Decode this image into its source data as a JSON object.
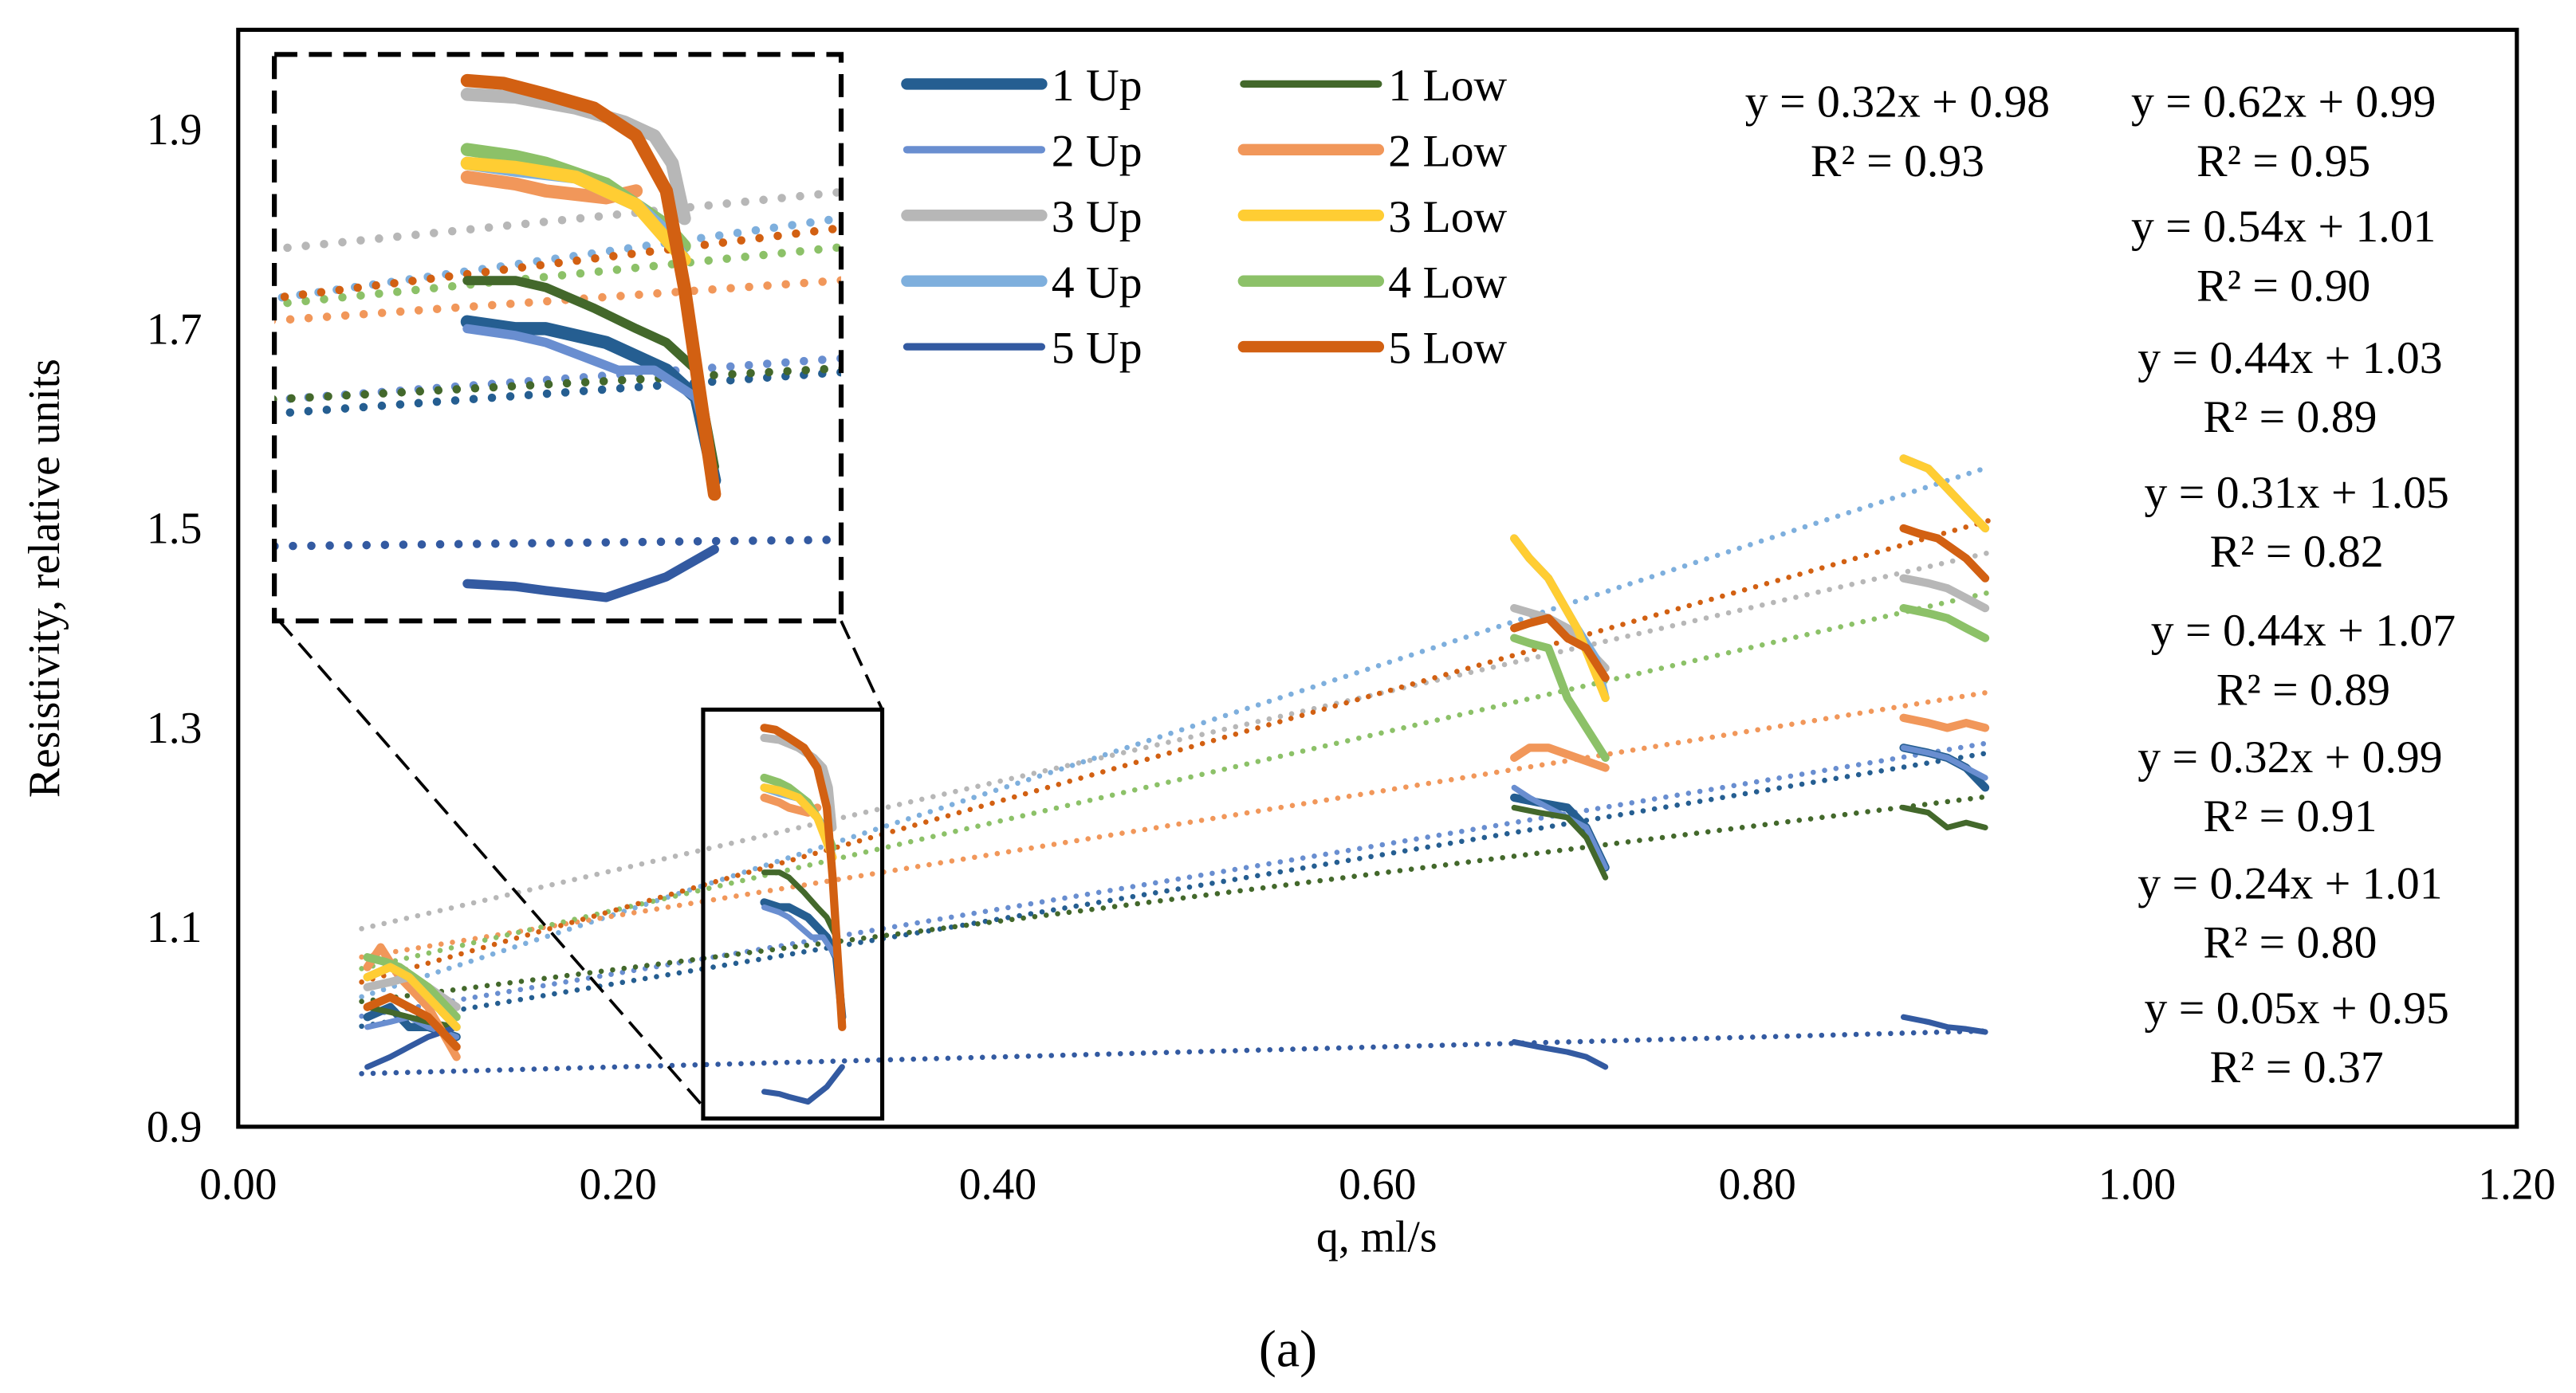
{
  "chart_data": {
    "type": "line",
    "title": "",
    "caption": "(a)",
    "xlabel": "q, ml/s",
    "ylabel": "Resistivity, relative units",
    "xlim": [
      0,
      1.2
    ],
    "ylim": [
      0.9,
      2.0
    ],
    "x_ticks": [
      "0.00",
      "0.20",
      "0.40",
      "0.60",
      "0.80",
      "1.00",
      "1.20"
    ],
    "x_tick_values": [
      0,
      0.2,
      0.4,
      0.6,
      0.8,
      1.0,
      1.2
    ],
    "y_ticks": [
      "0.9",
      "1.1",
      "1.3",
      "1.5",
      "1.7",
      "1.9"
    ],
    "y_tick_values": [
      0.9,
      1.1,
      1.3,
      1.5,
      1.7,
      1.9
    ],
    "grid": false,
    "legend_placement": "top-center",
    "inset": {
      "x_range": [
        0.245,
        0.339
      ],
      "y_range": [
        0.908,
        1.319
      ],
      "placement": "top-left"
    },
    "series": [
      {
        "name": "1 Up",
        "color": "#255E91",
        "thick": true,
        "fit": {
          "slope": 0.32,
          "intercept": 0.98
        },
        "segments": [
          [
            [
              0.068,
              1.01
            ],
            [
              0.08,
              1.02
            ],
            [
              0.09,
              1.0
            ],
            [
              0.1,
              1.0
            ],
            [
              0.115,
              0.99
            ]
          ],
          [
            [
              0.277,
              1.125
            ],
            [
              0.285,
              1.12
            ],
            [
              0.29,
              1.12
            ],
            [
              0.3,
              1.11
            ],
            [
              0.305,
              1.1
            ],
            [
              0.31,
              1.09
            ],
            [
              0.315,
              1.07
            ],
            [
              0.318,
              1.01
            ]
          ],
          [
            [
              0.672,
              1.23
            ],
            [
              0.685,
              1.225
            ],
            [
              0.7,
              1.22
            ],
            [
              0.71,
              1.2
            ],
            [
              0.72,
              1.16
            ]
          ],
          [
            [
              0.877,
              1.28
            ],
            [
              0.89,
              1.275
            ],
            [
              0.9,
              1.27
            ],
            [
              0.91,
              1.26
            ],
            [
              0.92,
              1.24
            ]
          ]
        ]
      },
      {
        "name": "2 Up",
        "color": "#698ED0",
        "thick": false,
        "fit": {
          "slope": 0.32,
          "intercept": 0.99
        },
        "segments": [
          [
            [
              0.068,
              1.0
            ],
            [
              0.08,
              1.005
            ],
            [
              0.09,
              1.01
            ],
            [
              0.1,
              1.0
            ],
            [
              0.115,
              0.99
            ]
          ],
          [
            [
              0.277,
              1.12
            ],
            [
              0.285,
              1.115
            ],
            [
              0.29,
              1.11
            ],
            [
              0.296,
              1.1
            ],
            [
              0.302,
              1.09
            ],
            [
              0.308,
              1.09
            ],
            [
              0.315,
              1.07
            ],
            [
              0.318,
              1.02
            ]
          ],
          [
            [
              0.672,
              1.24
            ],
            [
              0.68,
              1.23
            ],
            [
              0.69,
              1.22
            ],
            [
              0.71,
              1.2
            ],
            [
              0.72,
              1.16
            ]
          ],
          [
            [
              0.877,
              1.28
            ],
            [
              0.89,
              1.275
            ],
            [
              0.9,
              1.27
            ],
            [
              0.91,
              1.26
            ],
            [
              0.92,
              1.25
            ]
          ]
        ]
      },
      {
        "name": "3 Up",
        "color": "#B7B7B7",
        "thick": true,
        "fit": {
          "slope": 0.44,
          "intercept": 1.07
        },
        "segments": [
          [
            [
              0.068,
              1.04
            ],
            [
              0.08,
              1.045
            ],
            [
              0.09,
              1.05
            ],
            [
              0.1,
              1.04
            ],
            [
              0.115,
              1.02
            ]
          ],
          [
            [
              0.277,
              1.29
            ],
            [
              0.285,
              1.288
            ],
            [
              0.295,
              1.28
            ],
            [
              0.303,
              1.27
            ],
            [
              0.308,
              1.26
            ],
            [
              0.311,
              1.24
            ],
            [
              0.313,
              1.2
            ]
          ],
          [
            [
              0.672,
              1.42
            ],
            [
              0.69,
              1.41
            ],
            [
              0.7,
              1.4
            ],
            [
              0.71,
              1.38
            ],
            [
              0.72,
              1.36
            ]
          ],
          [
            [
              0.877,
              1.45
            ],
            [
              0.89,
              1.445
            ],
            [
              0.9,
              1.44
            ],
            [
              0.91,
              1.43
            ],
            [
              0.92,
              1.42
            ]
          ]
        ]
      },
      {
        "name": "4 Up",
        "color": "#7EAFDD",
        "thick": true,
        "fit": {
          "slope": 0.62,
          "intercept": 0.99
        },
        "segments": [
          [
            [
              0.068,
              1.05
            ],
            [
              0.08,
              1.06
            ],
            [
              0.09,
              1.05
            ],
            [
              0.1,
              1.03
            ],
            [
              0.115,
              1.0
            ]
          ],
          [
            [
              0.277,
              1.24
            ],
            [
              0.285,
              1.235
            ],
            [
              0.295,
              1.23
            ],
            [
              0.305,
              1.21
            ],
            [
              0.31,
              1.19
            ],
            [
              0.313,
              1.17
            ]
          ],
          [
            [
              0.672,
              1.49
            ],
            [
              0.68,
              1.47
            ],
            [
              0.69,
              1.45
            ],
            [
              0.705,
              1.4
            ],
            [
              0.715,
              1.37
            ],
            [
              0.72,
              1.33
            ]
          ],
          [
            [
              0.877,
              1.57
            ],
            [
              0.89,
              1.56
            ],
            [
              0.9,
              1.54
            ],
            [
              0.91,
              1.52
            ],
            [
              0.92,
              1.5
            ]
          ]
        ]
      },
      {
        "name": "5 Up",
        "color": "#335AA1",
        "thick": false,
        "fit": {
          "slope": 0.05,
          "intercept": 0.95
        },
        "segments": [
          [
            [
              0.068,
              0.96
            ],
            [
              0.08,
              0.97
            ],
            [
              0.09,
              0.98
            ],
            [
              0.1,
              0.99
            ],
            [
              0.115,
              1.0
            ]
          ],
          [
            [
              0.277,
              0.935
            ],
            [
              0.285,
              0.933
            ],
            [
              0.29,
              0.93
            ],
            [
              0.3,
              0.925
            ],
            [
              0.31,
              0.94
            ],
            [
              0.318,
              0.96
            ]
          ],
          [
            [
              0.672,
              0.985
            ],
            [
              0.685,
              0.98
            ],
            [
              0.7,
              0.975
            ],
            [
              0.71,
              0.97
            ],
            [
              0.72,
              0.96
            ]
          ],
          [
            [
              0.877,
              1.01
            ],
            [
              0.89,
              1.005
            ],
            [
              0.9,
              1.0
            ],
            [
              0.91,
              0.998
            ],
            [
              0.92,
              0.995
            ]
          ]
        ]
      },
      {
        "name": "1 Low",
        "color": "#43682B",
        "thick": false,
        "fit": {
          "slope": 0.24,
          "intercept": 1.01
        },
        "segments": [
          [
            [
              0.068,
              1.02
            ],
            [
              0.08,
              1.015
            ],
            [
              0.09,
              1.01
            ],
            [
              0.1,
              1.005
            ],
            [
              0.115,
              1.0
            ]
          ],
          [
            [
              0.277,
              1.155
            ],
            [
              0.285,
              1.155
            ],
            [
              0.29,
              1.15
            ],
            [
              0.298,
              1.135
            ],
            [
              0.305,
              1.12
            ],
            [
              0.31,
              1.11
            ],
            [
              0.315,
              1.09
            ],
            [
              0.318,
              1.02
            ]
          ],
          [
            [
              0.672,
              1.22
            ],
            [
              0.685,
              1.215
            ],
            [
              0.7,
              1.21
            ],
            [
              0.71,
              1.19
            ],
            [
              0.72,
              1.15
            ]
          ],
          [
            [
              0.877,
              1.22
            ],
            [
              0.89,
              1.215
            ],
            [
              0.9,
              1.2
            ],
            [
              0.91,
              1.205
            ],
            [
              0.92,
              1.2
            ]
          ]
        ]
      },
      {
        "name": "2 Low",
        "color": "#F1975A",
        "thick": true,
        "fit": {
          "slope": 0.31,
          "intercept": 1.05
        },
        "segments": [
          [
            [
              0.068,
              1.06
            ],
            [
              0.075,
              1.08
            ],
            [
              0.085,
              1.05
            ],
            [
              0.1,
              1.02
            ],
            [
              0.115,
              0.97
            ]
          ],
          [
            [
              0.277,
              1.23
            ],
            [
              0.285,
              1.225
            ],
            [
              0.29,
              1.22
            ],
            [
              0.3,
              1.215
            ],
            [
              0.305,
              1.22
            ]
          ],
          [
            [
              0.672,
              1.27
            ],
            [
              0.68,
              1.28
            ],
            [
              0.69,
              1.28
            ],
            [
              0.705,
              1.27
            ],
            [
              0.72,
              1.26
            ]
          ],
          [
            [
              0.877,
              1.31
            ],
            [
              0.89,
              1.305
            ],
            [
              0.9,
              1.3
            ],
            [
              0.91,
              1.305
            ],
            [
              0.92,
              1.3
            ]
          ]
        ]
      },
      {
        "name": "3 Low",
        "color": "#FFCD33",
        "thick": true,
        "fit": null,
        "segments": [
          [
            [
              0.068,
              1.05
            ],
            [
              0.08,
              1.06
            ],
            [
              0.09,
              1.05
            ],
            [
              0.1,
              1.03
            ],
            [
              0.115,
              1.0
            ]
          ],
          [
            [
              0.277,
              1.24
            ],
            [
              0.285,
              1.237
            ],
            [
              0.295,
              1.23
            ],
            [
              0.305,
              1.21
            ],
            [
              0.313,
              1.17
            ]
          ],
          [
            [
              0.672,
              1.49
            ],
            [
              0.68,
              1.47
            ],
            [
              0.69,
              1.45
            ],
            [
              0.705,
              1.4
            ],
            [
              0.72,
              1.33
            ]
          ],
          [
            [
              0.877,
              1.57
            ],
            [
              0.89,
              1.56
            ],
            [
              0.9,
              1.54
            ],
            [
              0.91,
              1.52
            ],
            [
              0.92,
              1.5
            ]
          ]
        ]
      },
      {
        "name": "4 Low",
        "color": "#8CC168",
        "thick": true,
        "fit": {
          "slope": 0.44,
          "intercept": 1.03
        },
        "segments": [
          [
            [
              0.068,
              1.07
            ],
            [
              0.078,
              1.065
            ],
            [
              0.085,
              1.06
            ],
            [
              0.1,
              1.04
            ],
            [
              0.115,
              1.01
            ]
          ],
          [
            [
              0.277,
              1.25
            ],
            [
              0.285,
              1.245
            ],
            [
              0.29,
              1.24
            ],
            [
              0.3,
              1.225
            ],
            [
              0.305,
              1.21
            ],
            [
              0.31,
              1.195
            ],
            [
              0.313,
              1.18
            ]
          ],
          [
            [
              0.672,
              1.39
            ],
            [
              0.68,
              1.385
            ],
            [
              0.69,
              1.38
            ],
            [
              0.7,
              1.33
            ],
            [
              0.71,
              1.3
            ],
            [
              0.72,
              1.27
            ]
          ],
          [
            [
              0.877,
              1.42
            ],
            [
              0.89,
              1.415
            ],
            [
              0.9,
              1.41
            ],
            [
              0.91,
              1.4
            ],
            [
              0.92,
              1.39
            ]
          ]
        ]
      },
      {
        "name": "5 Low",
        "color": "#D26012",
        "thick": true,
        "fit": {
          "slope": 0.54,
          "intercept": 1.01
        },
        "segments": [
          [
            [
              0.068,
              1.02
            ],
            [
              0.08,
              1.03
            ],
            [
              0.09,
              1.02
            ],
            [
              0.1,
              1.01
            ],
            [
              0.115,
              0.98
            ]
          ],
          [
            [
              0.277,
              1.3
            ],
            [
              0.283,
              1.298
            ],
            [
              0.29,
              1.29
            ],
            [
              0.298,
              1.28
            ],
            [
              0.305,
              1.26
            ],
            [
              0.31,
              1.22
            ],
            [
              0.313,
              1.15
            ],
            [
              0.318,
              1.0
            ]
          ],
          [
            [
              0.672,
              1.4
            ],
            [
              0.68,
              1.405
            ],
            [
              0.69,
              1.41
            ],
            [
              0.7,
              1.39
            ],
            [
              0.71,
              1.38
            ],
            [
              0.72,
              1.35
            ]
          ],
          [
            [
              0.877,
              1.5
            ],
            [
              0.885,
              1.495
            ],
            [
              0.895,
              1.49
            ],
            [
              0.91,
              1.47
            ],
            [
              0.92,
              1.45
            ]
          ]
        ]
      }
    ],
    "equations": [
      {
        "eq": "y = 0.32x + 0.98",
        "r2": "R² = 0.93"
      },
      {
        "eq": "y = 0.62x + 0.99",
        "r2": "R² = 0.95"
      },
      {
        "eq": "y = 0.54x + 1.01",
        "r2": "R² = 0.90"
      },
      {
        "eq": "y = 0.44x + 1.03",
        "r2": "R² = 0.89"
      },
      {
        "eq": "y = 0.31x + 1.05",
        "r2": "R² = 0.82"
      },
      {
        "eq": "y = 0.44x + 1.07",
        "r2": "R² = 0.89"
      },
      {
        "eq": "y = 0.32x + 0.99",
        "r2": "R² = 0.91"
      },
      {
        "eq": "y = 0.24x + 1.01",
        "r2": "R² = 0.80"
      },
      {
        "eq": "y = 0.05x + 0.95",
        "r2": "R² = 0.37"
      }
    ]
  }
}
